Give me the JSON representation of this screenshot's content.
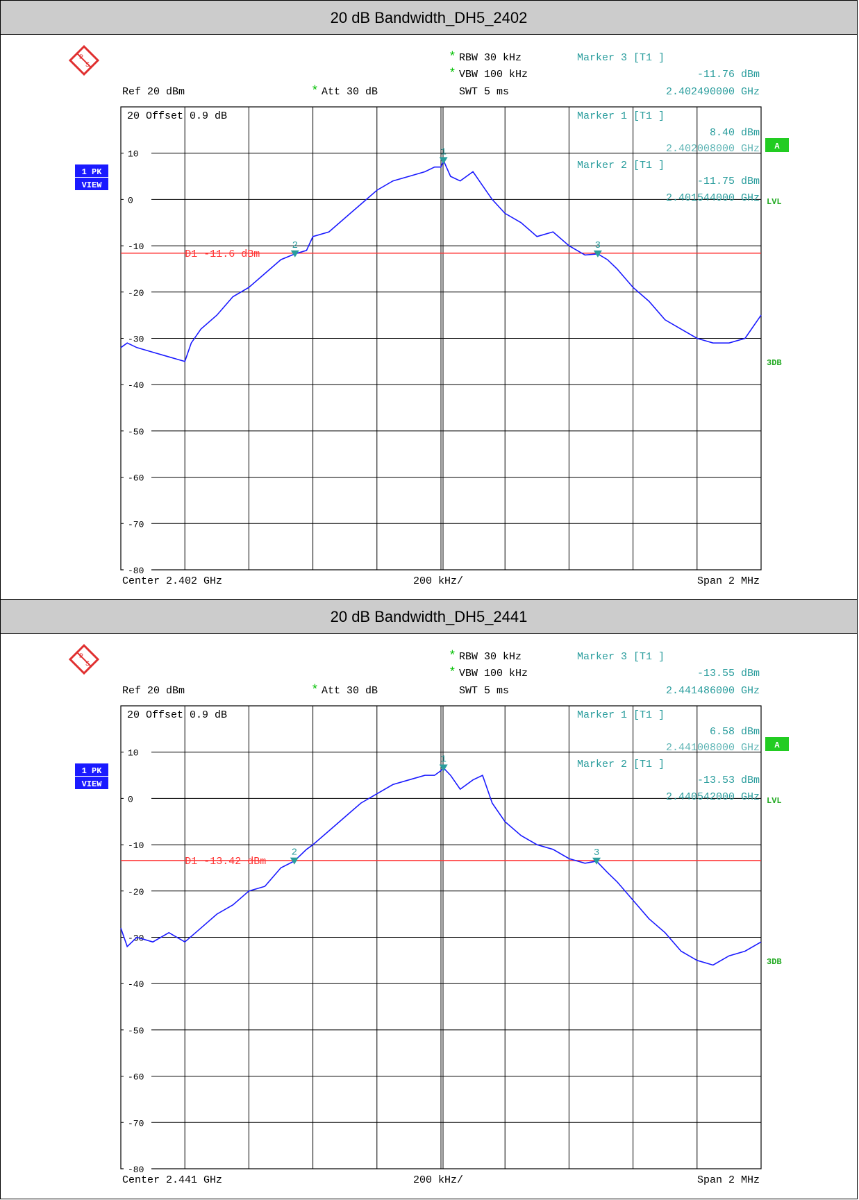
{
  "panels": [
    {
      "title": "20 dB Bandwidth_DH5_2402",
      "hdr": {
        "rbw": "RBW 30 kHz",
        "vbw": "VBW 100 kHz",
        "swt": "SWT 5 ms",
        "ref": "Ref  20 dBm",
        "att": "Att  30 dB",
        "star": "*",
        "m3_label": "Marker 3 [T1 ]",
        "m3_level": "-11.76 dBm",
        "m3_freq": "2.402490000 GHz"
      },
      "grid": {
        "offset": "20  Offset  0.9 dB",
        "m1_label": "Marker 1 [T1 ]",
        "m1_level": "8.40 dBm",
        "m1_freq": "2.402008000 GHz",
        "m2_label": "Marker 2 [T1 ]",
        "m2_level": "-11.75 dBm",
        "m2_freq": "2.401544000 GHz",
        "d1": "D1 -11.6 dBm"
      },
      "bottom": {
        "center": "Center 2.402 GHz",
        "div": "200 kHz/",
        "span": "Span 2 MHz"
      },
      "side": {
        "trace1": "1 PK",
        "trace2": "VIEW",
        "a": "A",
        "lvl": "LVL",
        "db3": "3DB"
      }
    },
    {
      "title": "20 dB Bandwidth_DH5_2441",
      "hdr": {
        "rbw": "RBW 30 kHz",
        "vbw": "VBW 100 kHz",
        "swt": "SWT 5 ms",
        "ref": "Ref  20 dBm",
        "att": "Att  30 dB",
        "star": "*",
        "m3_label": "Marker 3 [T1 ]",
        "m3_level": "-13.55 dBm",
        "m3_freq": "2.441486000 GHz"
      },
      "grid": {
        "offset": "20  Offset  0.9 dB",
        "m1_label": "Marker 1 [T1 ]",
        "m1_level": "6.58 dBm",
        "m1_freq": "2.441008000 GHz",
        "m2_label": "Marker 2 [T1 ]",
        "m2_level": "-13.53 dBm",
        "m2_freq": "2.440542000 GHz",
        "d1": "D1 -13.42 dBm"
      },
      "bottom": {
        "center": "Center 2.441 GHz",
        "div": "200 kHz/",
        "span": "Span 2 MHz"
      },
      "side": {
        "trace1": "1 PK",
        "trace2": "VIEW",
        "a": "A",
        "lvl": "LVL",
        "db3": "3DB"
      }
    }
  ],
  "chart_data": [
    {
      "type": "line",
      "title": "20 dB Bandwidth_DH5_2402",
      "xlabel": "",
      "ylabel": "",
      "x_unit": "MHz offset from center",
      "xlim": [
        -1.0,
        1.0
      ],
      "ylim": [
        -80,
        20
      ],
      "yticks": [
        10,
        0,
        -10,
        -20,
        -30,
        -40,
        -50,
        -60,
        -70,
        -80
      ],
      "grid": true,
      "colors": {
        "trace": "#1a1aff",
        "display_line": "#ff3333",
        "marker": "#2a9d9d",
        "grid": "#000000"
      },
      "display_line_dbm": -11.6,
      "markers": [
        {
          "label": "1",
          "x": 0.008,
          "y": 8.4
        },
        {
          "label": "2",
          "x": -0.456,
          "y": -11.75
        },
        {
          "label": "3",
          "x": 0.49,
          "y": -11.76
        }
      ],
      "series": [
        {
          "x": [
            -1.0,
            -0.98,
            -0.95,
            -0.9,
            -0.85,
            -0.8,
            -0.78,
            -0.75,
            -0.7,
            -0.65,
            -0.6,
            -0.55,
            -0.5,
            -0.456,
            -0.42,
            -0.4,
            -0.35,
            -0.3,
            -0.25,
            -0.2,
            -0.15,
            -0.1,
            -0.05,
            -0.02,
            0.0,
            0.008,
            0.03,
            0.06,
            0.1,
            0.13,
            0.16,
            0.2,
            0.25,
            0.3,
            0.35,
            0.4,
            0.45,
            0.49,
            0.52,
            0.55,
            0.6,
            0.65,
            0.7,
            0.75,
            0.8,
            0.85,
            0.9,
            0.95,
            1.0
          ],
          "y": [
            -32,
            -31,
            -32,
            -33,
            -34,
            -35,
            -31,
            -28,
            -25,
            -21,
            -19,
            -16,
            -13,
            -11.75,
            -11,
            -8,
            -7,
            -4,
            -1,
            2,
            4,
            5,
            6,
            7,
            7,
            8.4,
            5,
            4,
            6,
            3,
            0,
            -3,
            -5,
            -8,
            -7,
            -10,
            -12,
            -11.76,
            -13,
            -15,
            -19,
            -22,
            -26,
            -28,
            -30,
            -31,
            -31,
            -30,
            -25
          ]
        }
      ]
    },
    {
      "type": "line",
      "title": "20 dB Bandwidth_DH5_2441",
      "xlabel": "",
      "ylabel": "",
      "x_unit": "MHz offset from center",
      "xlim": [
        -1.0,
        1.0
      ],
      "ylim": [
        -80,
        20
      ],
      "yticks": [
        10,
        0,
        -10,
        -20,
        -30,
        -40,
        -50,
        -60,
        -70,
        -80
      ],
      "grid": true,
      "colors": {
        "trace": "#1a1aff",
        "display_line": "#ff3333",
        "marker": "#2a9d9d",
        "grid": "#000000"
      },
      "display_line_dbm": -13.42,
      "markers": [
        {
          "label": "1",
          "x": 0.008,
          "y": 6.58
        },
        {
          "label": "2",
          "x": -0.458,
          "y": -13.53
        },
        {
          "label": "3",
          "x": 0.486,
          "y": -13.55
        }
      ],
      "series": [
        {
          "x": [
            -1.0,
            -0.98,
            -0.95,
            -0.9,
            -0.85,
            -0.8,
            -0.75,
            -0.7,
            -0.65,
            -0.6,
            -0.55,
            -0.5,
            -0.458,
            -0.42,
            -0.4,
            -0.35,
            -0.3,
            -0.25,
            -0.2,
            -0.15,
            -0.1,
            -0.05,
            -0.02,
            0.0,
            0.008,
            0.03,
            0.06,
            0.1,
            0.13,
            0.16,
            0.2,
            0.25,
            0.3,
            0.35,
            0.4,
            0.45,
            0.486,
            0.52,
            0.55,
            0.6,
            0.65,
            0.7,
            0.75,
            0.8,
            0.85,
            0.9,
            0.95,
            1.0
          ],
          "y": [
            -28,
            -32,
            -30,
            -31,
            -29,
            -31,
            -28,
            -25,
            -23,
            -20,
            -19,
            -15,
            -13.53,
            -11,
            -10,
            -7,
            -4,
            -1,
            1,
            3,
            4,
            5,
            5,
            6,
            6.58,
            5,
            2,
            4,
            5,
            -1,
            -5,
            -8,
            -10,
            -11,
            -13,
            -14,
            -13.55,
            -16,
            -18,
            -22,
            -26,
            -29,
            -33,
            -35,
            -36,
            -34,
            -33,
            -31
          ]
        }
      ]
    }
  ]
}
